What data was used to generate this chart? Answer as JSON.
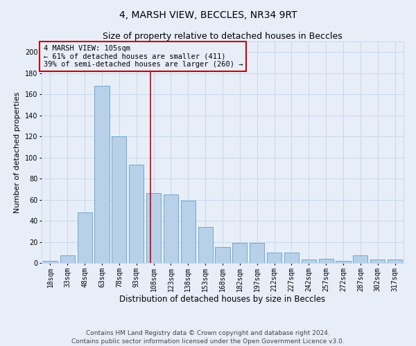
{
  "title1": "4, MARSH VIEW, BECCLES, NR34 9RT",
  "title2": "Size of property relative to detached houses in Beccles",
  "xlabel": "Distribution of detached houses by size in Beccles",
  "ylabel": "Number of detached properties",
  "categories": [
    "18sqm",
    "33sqm",
    "48sqm",
    "63sqm",
    "78sqm",
    "93sqm",
    "108sqm",
    "123sqm",
    "138sqm",
    "153sqm",
    "168sqm",
    "182sqm",
    "197sqm",
    "212sqm",
    "227sqm",
    "242sqm",
    "257sqm",
    "272sqm",
    "287sqm",
    "302sqm",
    "317sqm"
  ],
  "values": [
    2,
    7,
    48,
    168,
    120,
    93,
    66,
    65,
    59,
    34,
    15,
    19,
    19,
    10,
    10,
    3,
    4,
    2,
    7,
    3,
    3
  ],
  "bar_color": "#b8d0e8",
  "bar_edgecolor": "#6aaad4",
  "background_color": "#e8eef8",
  "vline_color": "#cc0000",
  "annotation_text": "4 MARSH VIEW: 105sqm\n← 61% of detached houses are smaller (411)\n39% of semi-detached houses are larger (260) →",
  "annotation_box_edgecolor": "#cc0000",
  "ylim": [
    0,
    210
  ],
  "yticks": [
    0,
    20,
    40,
    60,
    80,
    100,
    120,
    140,
    160,
    180,
    200
  ],
  "footer1": "Contains HM Land Registry data © Crown copyright and database right 2024.",
  "footer2": "Contains public sector information licensed under the Open Government Licence v3.0.",
  "grid_color": "#c8d8ec",
  "title1_fontsize": 10,
  "title2_fontsize": 9,
  "xlabel_fontsize": 8.5,
  "ylabel_fontsize": 8,
  "tick_fontsize": 7,
  "annotation_fontsize": 7.5,
  "footer_fontsize": 6.5
}
